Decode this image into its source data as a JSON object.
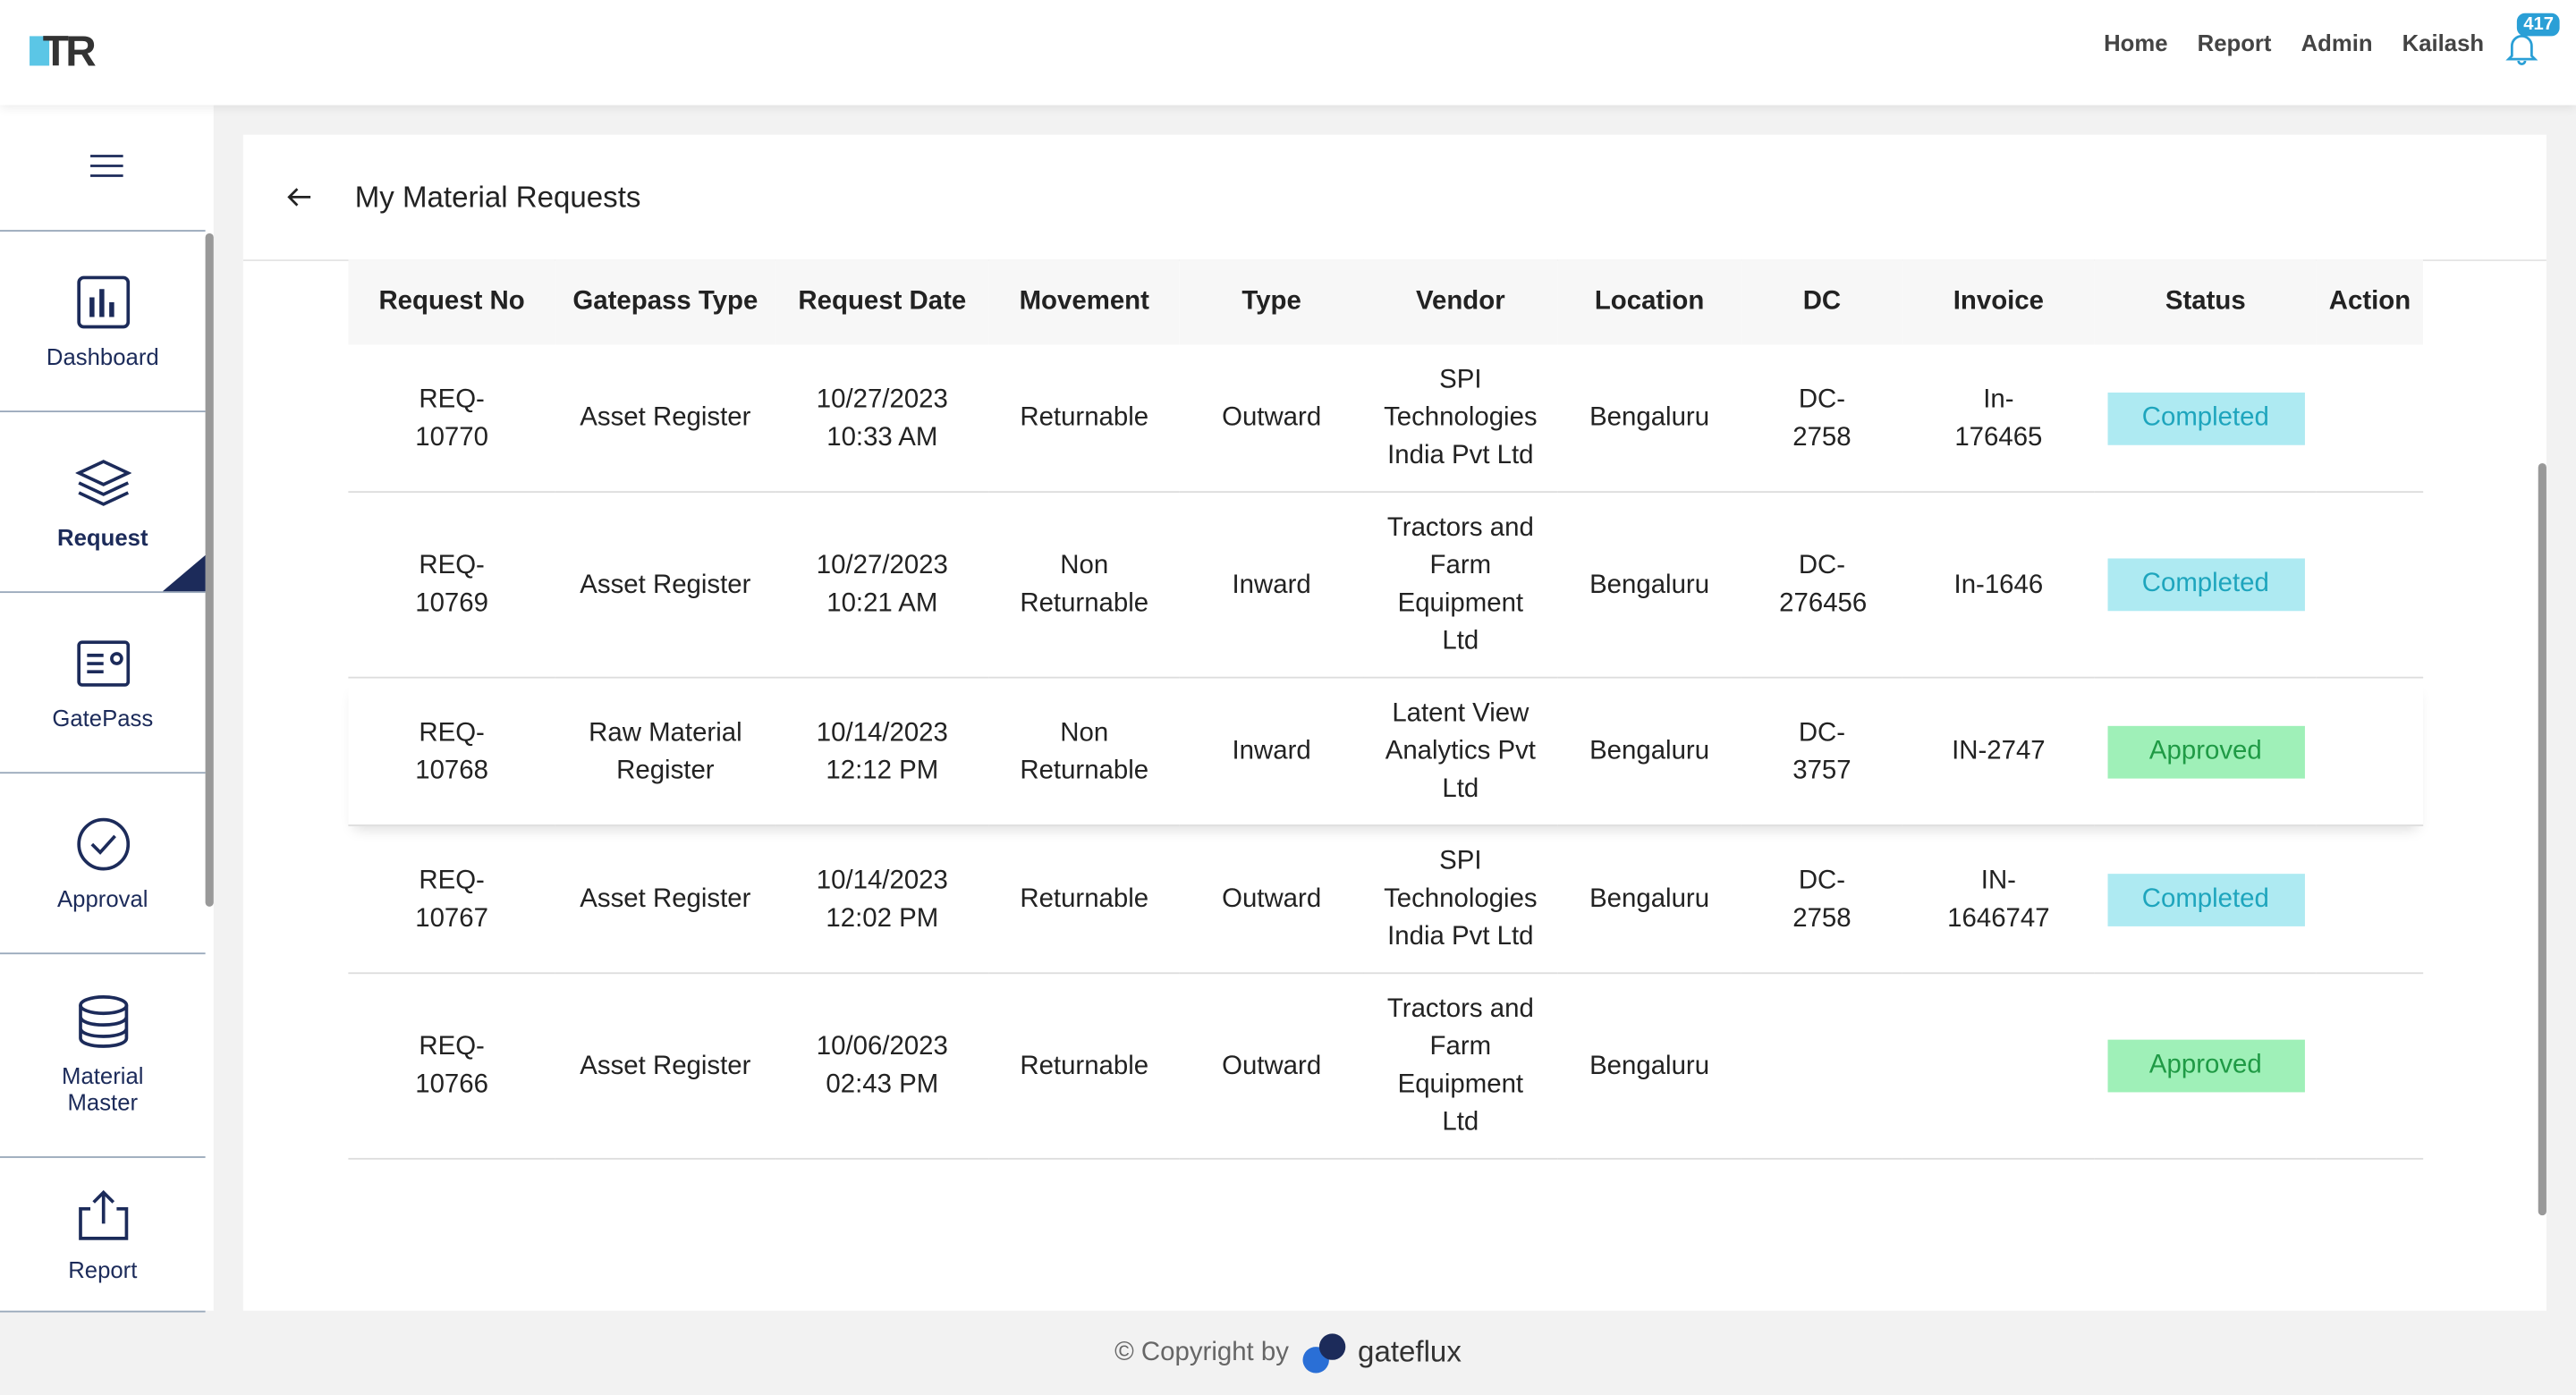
{
  "header": {
    "logo": "TR",
    "nav": [
      "Home",
      "Report",
      "Admin",
      "Kailash"
    ],
    "notifications": "417"
  },
  "sidebar": {
    "items": [
      "Dashboard",
      "Request",
      "GatePass",
      "Approval",
      "Material Master",
      "Report"
    ],
    "active": 1
  },
  "page": {
    "title": "My Material Requests"
  },
  "table": {
    "columns": [
      "Request No",
      "Gatepass Type",
      "Request Date",
      "Movement",
      "Type",
      "Vendor",
      "Location",
      "DC",
      "Invoice",
      "Status",
      "Action"
    ],
    "rows": [
      [
        "REQ-10770",
        "Asset Register",
        "10/27/2023 10:33 AM",
        "Returnable",
        "Outward",
        "SPI Technologies India Pvt Ltd",
        "Bengaluru",
        "DC-2758",
        "In-176465",
        "Completed"
      ],
      [
        "REQ-10769",
        "Asset Register",
        "10/27/2023 10:21 AM",
        "Non Returnable",
        "Inward",
        "Tractors and Farm Equipment Ltd",
        "Bengaluru",
        "DC-276456",
        "In-1646",
        "Completed"
      ],
      [
        "REQ-10768",
        "Raw Material Register",
        "10/14/2023 12:12 PM",
        "Non Returnable",
        "Inward",
        "Latent View Analytics Pvt Ltd",
        "Bengaluru",
        "DC-3757",
        "IN-2747",
        "Approved"
      ],
      [
        "REQ-10767",
        "Asset Register",
        "10/14/2023 12:02 PM",
        "Returnable",
        "Outward",
        "SPI Technologies India Pvt Ltd",
        "Bengaluru",
        "DC-2758",
        "IN-1646747",
        "Completed"
      ],
      [
        "REQ-10766",
        "Asset Register",
        "10/06/2023 02:43 PM",
        "Returnable",
        "Outward",
        "Tractors and Farm Equipment Ltd",
        "Bengaluru",
        null,
        null,
        "Approved"
      ]
    ]
  },
  "footer": {
    "copyright": "© Copyright by",
    "brand": "gateflux"
  }
}
